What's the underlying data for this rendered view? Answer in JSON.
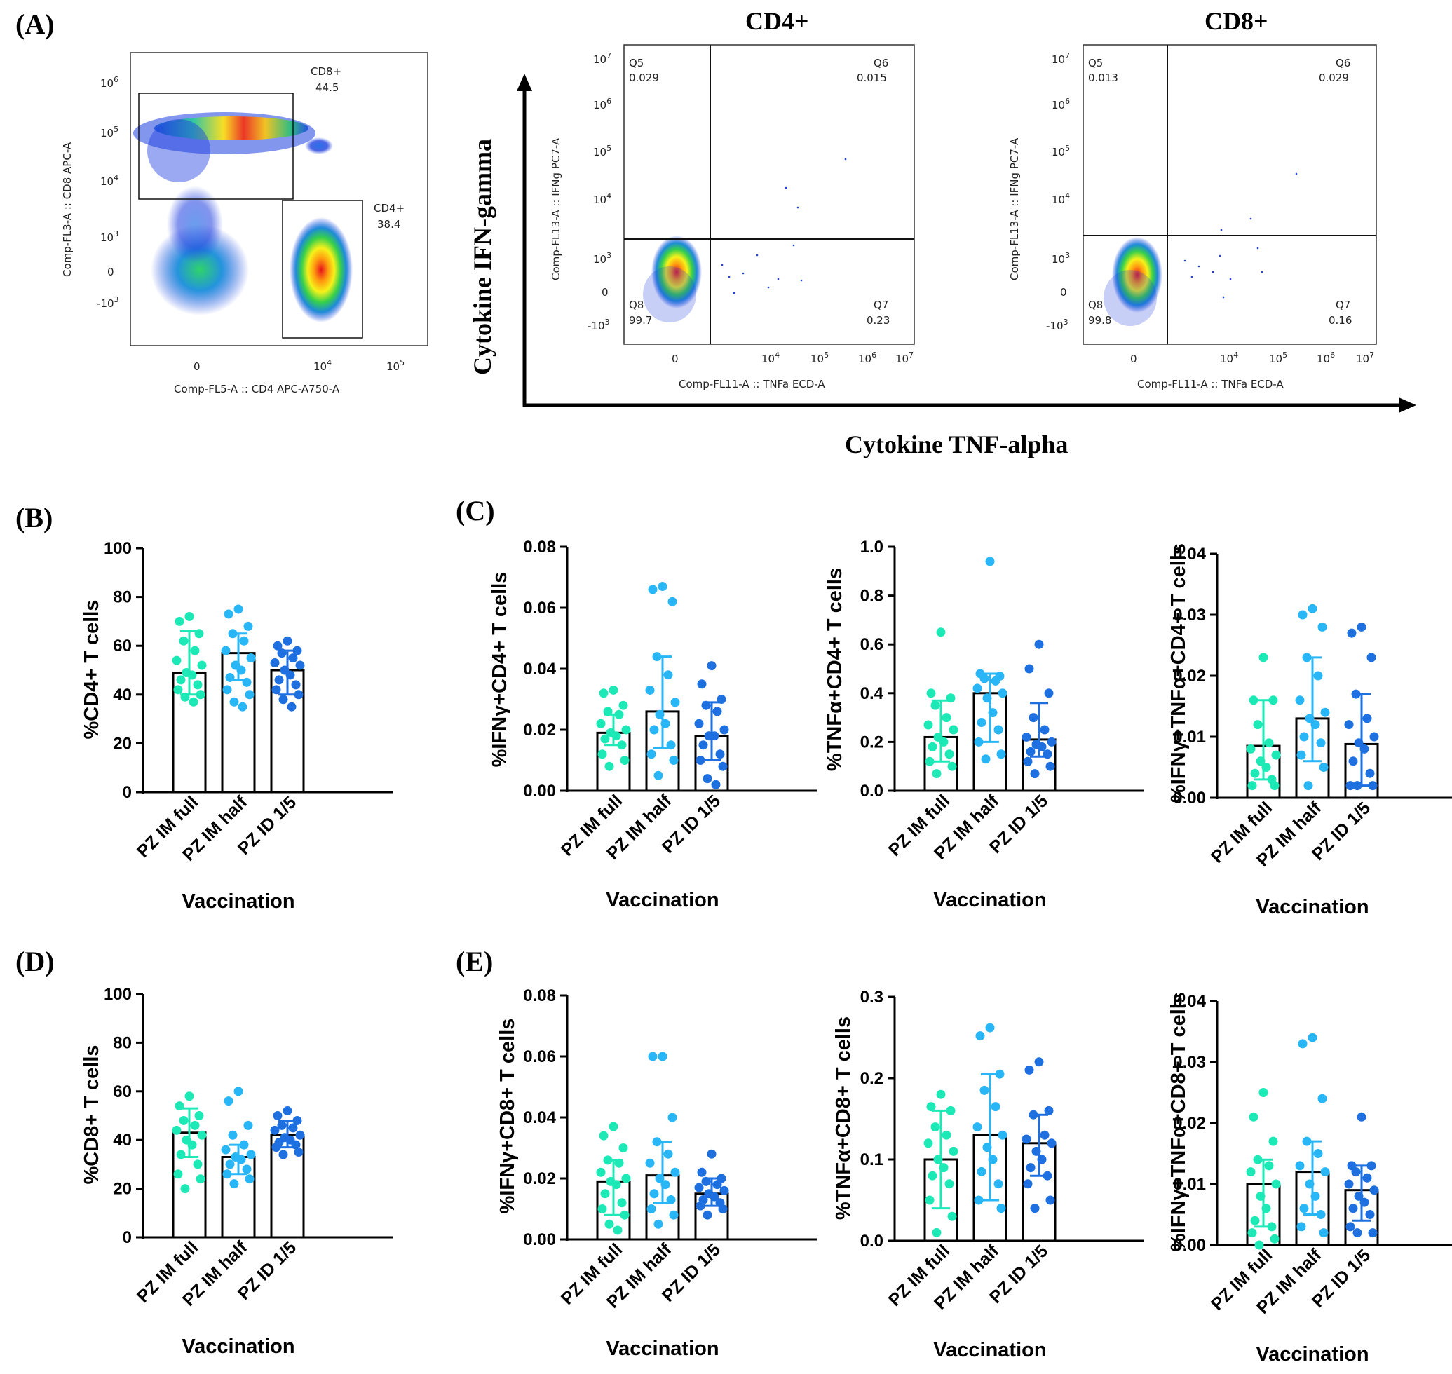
{
  "panel_labels": {
    "A": "(A)",
    "B": "(B)",
    "C": "(C)",
    "D": "(D)",
    "E": "(E)"
  },
  "flow": {
    "gating": {
      "x_label": "Comp-FL5-A :: CD4 APC-A750-A",
      "y_label": "Comp-FL3-A :: CD8 APC-A",
      "cd8_gate": {
        "name": "CD8+",
        "value": "44.5"
      },
      "cd4_gate": {
        "name": "CD4+",
        "value": "38.4"
      },
      "y_ticks": [
        "10",
        "10",
        "10",
        "10",
        "0",
        "-10"
      ],
      "y_exps": [
        "6",
        "5",
        "4",
        "3",
        "",
        "3"
      ],
      "x_ticks": [
        "0",
        "10",
        "10"
      ],
      "x_exps": [
        "",
        "4",
        "5"
      ]
    },
    "quad_plots": [
      {
        "title": "CD4+",
        "q5": "Q5",
        "q5v": "0.029",
        "q6": "Q6",
        "q6v": "0.015",
        "q7": "Q7",
        "q7v": "0.23",
        "q8": "Q8",
        "q8v": "99.7",
        "x_label": "Comp-FL11-A :: TNFa ECD-A",
        "y_label": "Comp-FL13-A :: IFNg PC7-A"
      },
      {
        "title": "CD8+",
        "q5": "Q5",
        "q5v": "0.013",
        "q6": "Q6",
        "q6v": "0.029",
        "q7": "Q7",
        "q7v": "0.16",
        "q8": "Q8",
        "q8v": "99.8",
        "x_label": "Comp-FL11-A :: TNFa ECD-A",
        "y_label": "Comp-FL13-A :: IFNg PC7-A"
      }
    ],
    "quad_y_ticks": [
      "10",
      "10",
      "10",
      "10",
      "10",
      "0",
      "-10"
    ],
    "quad_y_exps": [
      "7",
      "6",
      "5",
      "4",
      "3",
      "",
      "3"
    ],
    "quad_x_ticks": [
      "0",
      "10",
      "10",
      "10",
      "10"
    ],
    "quad_x_exps": [
      "",
      "4",
      "5",
      "6",
      "7"
    ],
    "axis_y": "Cytokine IFN-gamma",
    "axis_x": "Cytokine TNF-alpha"
  },
  "chart_data": [
    {
      "id": "B",
      "type": "bar",
      "categories": [
        "PZ IM full",
        "PZ IM half",
        "PZ ID 1/5"
      ],
      "xlabel": "Vaccination",
      "ylabel": "%CD4+ T cells",
      "ylim": [
        0,
        100
      ],
      "yticks": [
        0,
        20,
        40,
        60,
        80,
        100
      ],
      "ytick_labels": [
        "0",
        "20",
        "40",
        "60",
        "80",
        "100"
      ],
      "means": [
        49,
        57,
        50
      ],
      "err_low": [
        40,
        46,
        40
      ],
      "err_high": [
        66,
        65,
        58
      ],
      "points": [
        [
          72,
          70,
          65,
          62,
          58,
          54,
          52,
          49,
          48,
          46,
          44,
          42,
          40,
          39,
          37
        ],
        [
          75,
          73,
          68,
          65,
          62,
          58,
          55,
          52,
          50,
          47,
          45,
          42,
          40,
          37,
          35
        ],
        [
          62,
          60,
          58,
          57,
          55,
          53,
          52,
          50,
          48,
          46,
          44,
          42,
          40,
          38,
          35
        ]
      ],
      "colors": [
        "#1de9b6",
        "#29b6f6",
        "#1e6fe0"
      ]
    },
    {
      "id": "C1",
      "type": "bar",
      "categories": [
        "PZ IM full",
        "PZ IM half",
        "PZ ID 1/5"
      ],
      "xlabel": "Vaccination",
      "ylabel": "%IFNγ+CD4+ T cells",
      "ylim": [
        0,
        0.08
      ],
      "yticks": [
        0,
        0.02,
        0.04,
        0.06,
        0.08
      ],
      "ytick_labels": [
        "0.00",
        "0.02",
        "0.04",
        "0.06",
        "0.08"
      ],
      "means": [
        0.019,
        0.026,
        0.018
      ],
      "err_low": [
        0.015,
        0.014,
        0.01
      ],
      "err_high": [
        0.025,
        0.044,
        0.029
      ],
      "points": [
        [
          0.033,
          0.032,
          0.028,
          0.026,
          0.025,
          0.022,
          0.02,
          0.019,
          0.018,
          0.017,
          0.015,
          0.012,
          0.01,
          0.008
        ],
        [
          0.067,
          0.066,
          0.062,
          0.044,
          0.038,
          0.033,
          0.029,
          0.025,
          0.022,
          0.02,
          0.015,
          0.012,
          0.01,
          0.005
        ],
        [
          0.041,
          0.035,
          0.03,
          0.028,
          0.026,
          0.022,
          0.02,
          0.018,
          0.018,
          0.015,
          0.012,
          0.01,
          0.008,
          0.004,
          0.002
        ]
      ],
      "colors": [
        "#1de9b6",
        "#29b6f6",
        "#1e6fe0"
      ]
    },
    {
      "id": "C2",
      "type": "bar",
      "categories": [
        "PZ IM full",
        "PZ IM half",
        "PZ ID 1/5"
      ],
      "xlabel": "Vaccination",
      "ylabel": "%TNFα+CD4+ T cells",
      "ylim": [
        0,
        1.0
      ],
      "yticks": [
        0,
        0.2,
        0.4,
        0.6,
        0.8,
        1.0
      ],
      "ytick_labels": [
        "0.0",
        "0.2",
        "0.4",
        "0.6",
        "0.8",
        "1.0"
      ],
      "means": [
        0.22,
        0.4,
        0.21
      ],
      "err_low": [
        0.12,
        0.2,
        0.14
      ],
      "err_high": [
        0.37,
        0.48,
        0.36
      ],
      "points": [
        [
          0.65,
          0.4,
          0.38,
          0.35,
          0.3,
          0.27,
          0.25,
          0.22,
          0.2,
          0.18,
          0.15,
          0.12,
          0.1,
          0.07
        ],
        [
          0.94,
          0.48,
          0.47,
          0.46,
          0.45,
          0.42,
          0.4,
          0.38,
          0.32,
          0.28,
          0.25,
          0.2,
          0.15,
          0.13
        ],
        [
          0.6,
          0.5,
          0.4,
          0.3,
          0.25,
          0.22,
          0.2,
          0.19,
          0.18,
          0.16,
          0.15,
          0.12,
          0.1,
          0.07
        ]
      ],
      "colors": [
        "#1de9b6",
        "#29b6f6",
        "#1e6fe0"
      ]
    },
    {
      "id": "C3",
      "type": "bar",
      "categories": [
        "PZ IM full",
        "PZ IM half",
        "PZ ID 1/5"
      ],
      "xlabel": "Vaccination",
      "ylabel": "%IFNγ+TNFα+CD4+ T cells",
      "ylim": [
        0,
        0.04
      ],
      "yticks": [
        0,
        0.01,
        0.02,
        0.03,
        0.04
      ],
      "ytick_labels": [
        "0.00",
        "0.01",
        "0.02",
        "0.03",
        "0.04"
      ],
      "means": [
        0.0085,
        0.013,
        0.0088
      ],
      "err_low": [
        0.003,
        0.006,
        0.002
      ],
      "err_high": [
        0.016,
        0.023,
        0.017
      ],
      "points": [
        [
          0.023,
          0.016,
          0.016,
          0.012,
          0.009,
          0.008,
          0.007,
          0.006,
          0.005,
          0.004,
          0.003,
          0.002,
          0.002
        ],
        [
          0.031,
          0.03,
          0.028,
          0.023,
          0.02,
          0.016,
          0.014,
          0.013,
          0.012,
          0.01,
          0.009,
          0.007,
          0.005,
          0.002
        ],
        [
          0.028,
          0.027,
          0.023,
          0.017,
          0.013,
          0.012,
          0.01,
          0.009,
          0.008,
          0.006,
          0.004,
          0.002,
          0.002,
          0.002
        ]
      ],
      "colors": [
        "#1de9b6",
        "#29b6f6",
        "#1e6fe0"
      ]
    },
    {
      "id": "D",
      "type": "bar",
      "categories": [
        "PZ IM full",
        "PZ IM half",
        "PZ ID 1/5"
      ],
      "xlabel": "Vaccination",
      "ylabel": "%CD8+ T cells",
      "ylim": [
        0,
        100
      ],
      "yticks": [
        0,
        20,
        40,
        60,
        80,
        100
      ],
      "ytick_labels": [
        "0",
        "20",
        "40",
        "60",
        "80",
        "100"
      ],
      "means": [
        43,
        33,
        42
      ],
      "err_low": [
        33,
        26,
        37
      ],
      "err_high": [
        53,
        38,
        48
      ],
      "points": [
        [
          58,
          54,
          50,
          48,
          46,
          44,
          42,
          40,
          38,
          34,
          30,
          26,
          24,
          20
        ],
        [
          60,
          56,
          46,
          42,
          38,
          36,
          34,
          33,
          32,
          30,
          28,
          26,
          24,
          22
        ],
        [
          52,
          50,
          48,
          46,
          45,
          44,
          42,
          41,
          40,
          39,
          38,
          37,
          35,
          34
        ]
      ],
      "colors": [
        "#1de9b6",
        "#29b6f6",
        "#1e6fe0"
      ]
    },
    {
      "id": "E1",
      "type": "bar",
      "categories": [
        "PZ IM full",
        "PZ IM half",
        "PZ ID 1/5"
      ],
      "xlabel": "Vaccination",
      "ylabel": "%IFNγ+CD8+ T cells",
      "ylim": [
        0,
        0.08
      ],
      "yticks": [
        0,
        0.02,
        0.04,
        0.06,
        0.08
      ],
      "ytick_labels": [
        "0.00",
        "0.02",
        "0.04",
        "0.06",
        "0.08"
      ],
      "means": [
        0.019,
        0.021,
        0.015
      ],
      "err_low": [
        0.008,
        0.012,
        0.011
      ],
      "err_high": [
        0.026,
        0.032,
        0.02
      ],
      "points": [
        [
          0.037,
          0.034,
          0.03,
          0.026,
          0.025,
          0.022,
          0.02,
          0.019,
          0.018,
          0.015,
          0.012,
          0.01,
          0.008,
          0.005,
          0.003
        ],
        [
          0.06,
          0.06,
          0.04,
          0.032,
          0.028,
          0.025,
          0.022,
          0.02,
          0.018,
          0.015,
          0.013,
          0.01,
          0.008,
          0.005
        ],
        [
          0.028,
          0.022,
          0.02,
          0.019,
          0.018,
          0.017,
          0.016,
          0.015,
          0.014,
          0.013,
          0.012,
          0.011,
          0.01,
          0.008
        ]
      ],
      "colors": [
        "#1de9b6",
        "#29b6f6",
        "#1e6fe0"
      ]
    },
    {
      "id": "E2",
      "type": "bar",
      "categories": [
        "PZ IM full",
        "PZ IM half",
        "PZ ID 1/5"
      ],
      "xlabel": "Vaccination",
      "ylabel": "%TNFα+CD8+ T cells",
      "ylim": [
        0,
        0.3
      ],
      "yticks": [
        0,
        0.1,
        0.2,
        0.3
      ],
      "ytick_labels": [
        "0.0",
        "0.1",
        "0.2",
        "0.3"
      ],
      "means": [
        0.1,
        0.13,
        0.12
      ],
      "err_low": [
        0.04,
        0.05,
        0.08
      ],
      "err_high": [
        0.16,
        0.205,
        0.155
      ],
      "points": [
        [
          0.18,
          0.165,
          0.16,
          0.14,
          0.13,
          0.12,
          0.11,
          0.1,
          0.09,
          0.08,
          0.07,
          0.05,
          0.03,
          0.01
        ],
        [
          0.262,
          0.252,
          0.205,
          0.185,
          0.165,
          0.14,
          0.13,
          0.115,
          0.1,
          0.085,
          0.07,
          0.05,
          0.04
        ],
        [
          0.22,
          0.21,
          0.16,
          0.155,
          0.13,
          0.125,
          0.12,
          0.11,
          0.1,
          0.09,
          0.08,
          0.07,
          0.05,
          0.04
        ]
      ],
      "colors": [
        "#1de9b6",
        "#29b6f6",
        "#1e6fe0"
      ]
    },
    {
      "id": "E3",
      "type": "bar",
      "categories": [
        "PZ IM full",
        "PZ IM half",
        "PZ ID 1/5"
      ],
      "xlabel": "Vaccination",
      "ylabel": "%IFNγ+TNFα+CD8+ T cells",
      "ylim": [
        0,
        0.04
      ],
      "yticks": [
        0,
        0.01,
        0.02,
        0.03,
        0.04
      ],
      "ytick_labels": [
        "0.00",
        "0.01",
        "0.02",
        "0.03",
        "0.04"
      ],
      "means": [
        0.01,
        0.012,
        0.009
      ],
      "err_low": [
        0.003,
        0.005,
        0.004
      ],
      "err_high": [
        0.014,
        0.017,
        0.013
      ],
      "points": [
        [
          0.025,
          0.021,
          0.017,
          0.014,
          0.013,
          0.012,
          0.01,
          0.008,
          0.006,
          0.004,
          0.003,
          0.002,
          0.001,
          0.0
        ],
        [
          0.034,
          0.033,
          0.024,
          0.017,
          0.015,
          0.013,
          0.012,
          0.01,
          0.008,
          0.006,
          0.005,
          0.003,
          0.002
        ],
        [
          0.021,
          0.013,
          0.013,
          0.012,
          0.011,
          0.01,
          0.009,
          0.008,
          0.007,
          0.006,
          0.005,
          0.003,
          0.002,
          0.002
        ]
      ],
      "colors": [
        "#1de9b6",
        "#29b6f6",
        "#1e6fe0"
      ]
    }
  ]
}
